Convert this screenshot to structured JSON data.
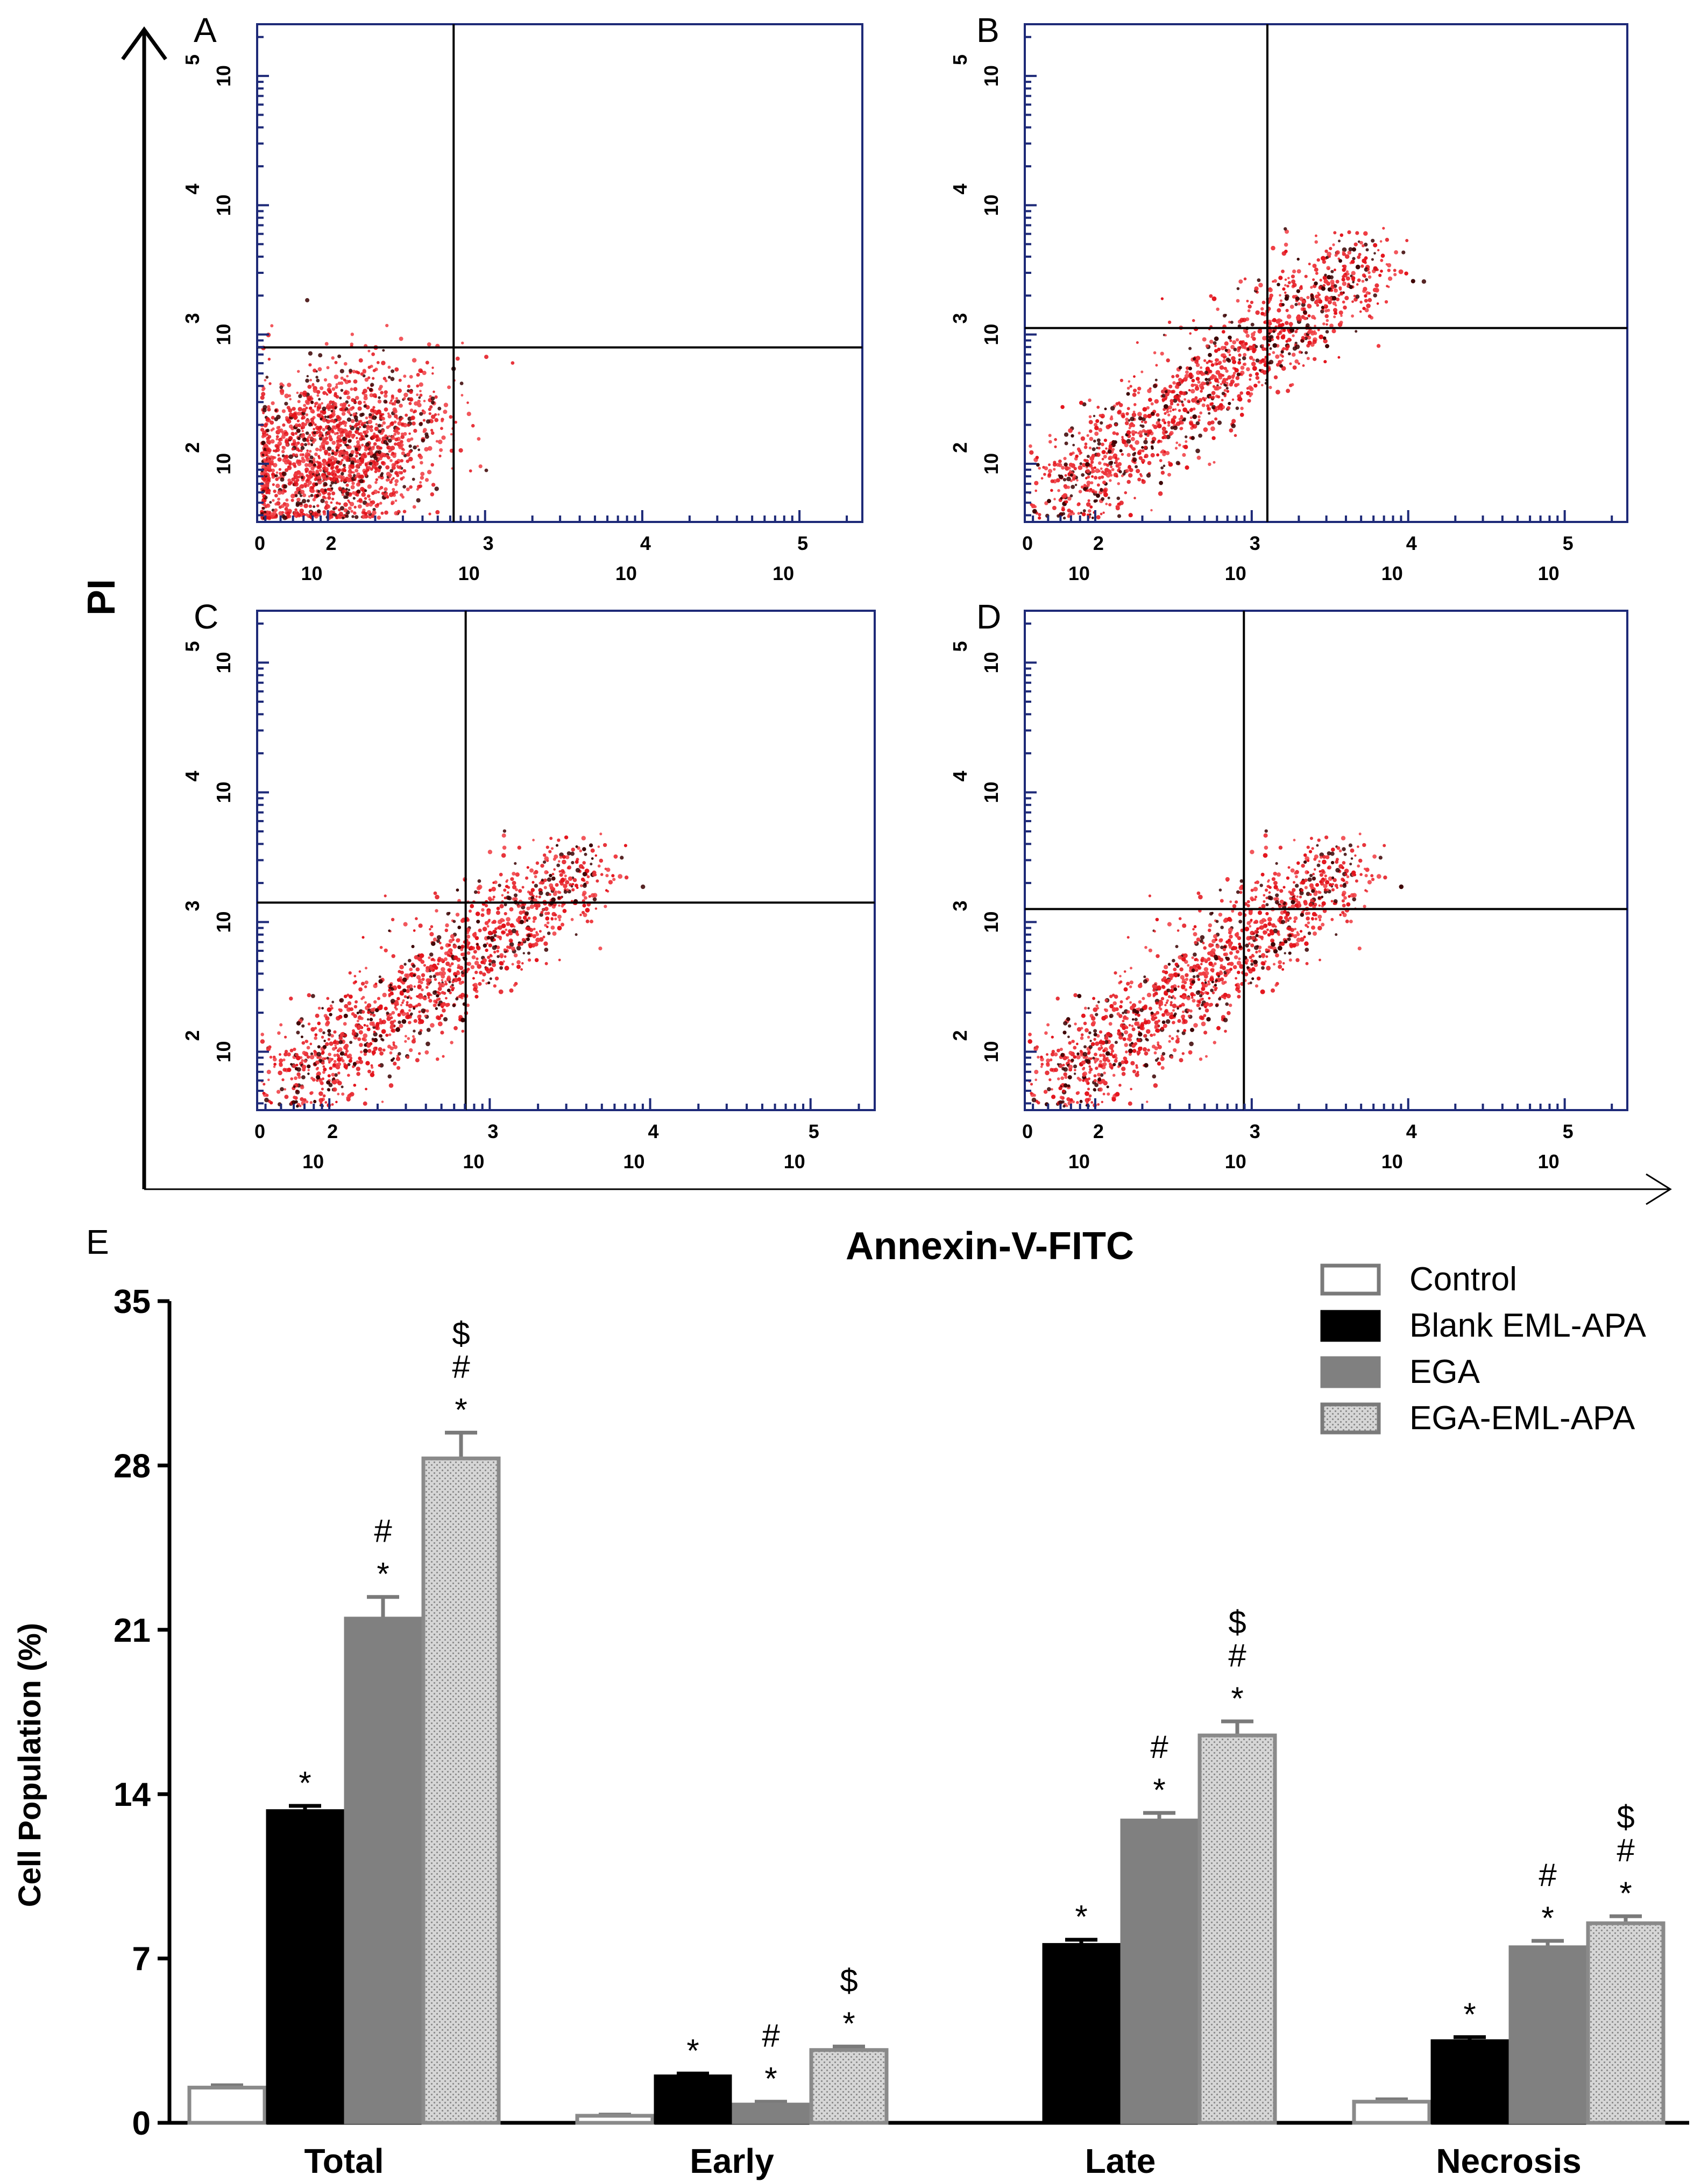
{
  "flow_panels": {
    "y_title": "PI",
    "x_title": "Annexin-V-FITC",
    "tick_exponents": [
      "2",
      "3",
      "4",
      "5"
    ],
    "tick_base": "10",
    "x_zero": "0",
    "panels": [
      {
        "label": "A",
        "v_gate": 2.8,
        "h_gate": 2.9,
        "cloud": "tight"
      },
      {
        "label": "B",
        "v_gate": 3.1,
        "h_gate": 3.05,
        "cloud": "diagonal"
      },
      {
        "label": "C",
        "v_gate": 2.85,
        "h_gate": 3.15,
        "cloud": "diagonal"
      },
      {
        "label": "D",
        "v_gate": 2.95,
        "h_gate": 3.1,
        "cloud": "diagonal"
      }
    ]
  },
  "chart_data": {
    "type": "bar",
    "panel_label": "E",
    "title": "",
    "xlabel": "",
    "ylabel": "Cell Population (%)",
    "ylim": [
      0,
      35
    ],
    "yticks": [
      0,
      7,
      14,
      21,
      28,
      35
    ],
    "categories": [
      "Total",
      "Early",
      "Late",
      "Necrosis"
    ],
    "series": [
      {
        "name": "Control",
        "color": "#ffffff",
        "values": [
          1.5,
          0.3,
          0,
          0.9
        ],
        "errors": [
          0.1,
          0.05,
          0,
          0.1
        ],
        "sig": [
          "",
          "",
          "",
          ""
        ]
      },
      {
        "name": "Blank EML-APA",
        "color": "#000000",
        "values": [
          13.3,
          2.0,
          7.6,
          3.5
        ],
        "errors": [
          0.2,
          0.1,
          0.2,
          0.15
        ],
        "sig": [
          "*",
          "*",
          "*",
          "*"
        ]
      },
      {
        "name": "EGA",
        "color": "#808080",
        "values": [
          21.5,
          0.8,
          12.9,
          7.5
        ],
        "errors": [
          0.9,
          0.1,
          0.3,
          0.25
        ],
        "sig": [
          "#\n*",
          "#\n*",
          "#\n*",
          "#\n*"
        ]
      },
      {
        "name": "EGA-EML-APA",
        "color": "#d0d0d0",
        "values": [
          28.3,
          3.1,
          16.5,
          8.5
        ],
        "errors": [
          1.1,
          0.15,
          0.6,
          0.3
        ],
        "sig": [
          "$\n#\n*",
          "$\n*",
          "$\n#\n*",
          "$\n#\n*"
        ]
      }
    ]
  }
}
